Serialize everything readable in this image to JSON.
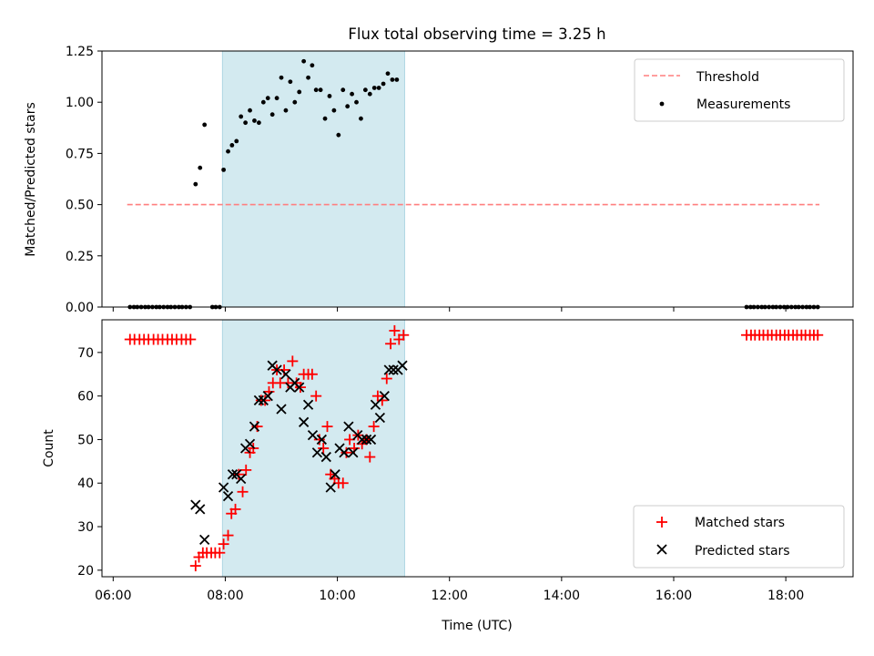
{
  "chart_data": {
    "title": "Flux total observing time = 3.25 h",
    "shaded_interval_hours": [
      7.95,
      11.2
    ],
    "shade_color": "#d3eaf0",
    "shade_edge_color": "#aed6e2",
    "x_axis": {
      "label": "Time (UTC)",
      "range_hours": [
        5.8,
        19.2
      ],
      "ticks": [
        {
          "hour": 6,
          "label": "06:00"
        },
        {
          "hour": 8,
          "label": "08:00"
        },
        {
          "hour": 10,
          "label": "10:00"
        },
        {
          "hour": 12,
          "label": "12:00"
        },
        {
          "hour": 14,
          "label": "14:00"
        },
        {
          "hour": 16,
          "label": "16:00"
        },
        {
          "hour": 18,
          "label": "18:00"
        }
      ]
    },
    "panels": [
      {
        "type": "line+scatter",
        "ylabel": "Matched/Predicted stars",
        "ylim": [
          0,
          1.25
        ],
        "yticks": [
          {
            "value": 0,
            "label": "0.00"
          },
          {
            "value": 0.25,
            "label": "0.25"
          },
          {
            "value": 0.5,
            "label": "0.50"
          },
          {
            "value": 0.75,
            "label": "0.75"
          },
          {
            "value": 1.0,
            "label": "1.00"
          },
          {
            "value": 1.25,
            "label": "1.25"
          }
        ],
        "legend": {
          "placement": "upper right",
          "entries": [
            "Threshold",
            "Measurements"
          ]
        },
        "threshold": {
          "name": "Threshold",
          "value": 0.5,
          "x_range_hours": [
            6.25,
            18.6
          ],
          "color": "#ff7f7f"
        },
        "measurements": {
          "name": "Measurements",
          "color": "#000000",
          "points": [
            [
              6.3,
              0
            ],
            [
              6.37,
              0
            ],
            [
              6.43,
              0
            ],
            [
              6.5,
              0
            ],
            [
              6.57,
              0
            ],
            [
              6.63,
              0
            ],
            [
              6.7,
              0
            ],
            [
              6.77,
              0
            ],
            [
              6.83,
              0
            ],
            [
              6.9,
              0
            ],
            [
              6.97,
              0
            ],
            [
              7.03,
              0
            ],
            [
              7.1,
              0
            ],
            [
              7.17,
              0
            ],
            [
              7.23,
              0
            ],
            [
              7.3,
              0
            ],
            [
              7.37,
              0
            ],
            [
              7.47,
              0.6
            ],
            [
              7.55,
              0.68
            ],
            [
              7.63,
              0.89
            ],
            [
              7.77,
              0
            ],
            [
              7.83,
              0
            ],
            [
              7.9,
              0
            ],
            [
              7.97,
              0.67
            ],
            [
              8.05,
              0.76
            ],
            [
              8.12,
              0.79
            ],
            [
              8.2,
              0.81
            ],
            [
              8.28,
              0.93
            ],
            [
              8.36,
              0.9
            ],
            [
              8.44,
              0.96
            ],
            [
              8.52,
              0.91
            ],
            [
              8.6,
              0.9
            ],
            [
              8.68,
              1.0
            ],
            [
              8.76,
              1.02
            ],
            [
              8.84,
              0.94
            ],
            [
              8.92,
              1.02
            ],
            [
              9.0,
              1.12
            ],
            [
              9.08,
              0.96
            ],
            [
              9.16,
              1.1
            ],
            [
              9.24,
              1.0
            ],
            [
              9.32,
              1.05
            ],
            [
              9.4,
              1.2
            ],
            [
              9.48,
              1.12
            ],
            [
              9.55,
              1.18
            ],
            [
              9.62,
              1.06
            ],
            [
              9.7,
              1.06
            ],
            [
              9.78,
              0.92
            ],
            [
              9.86,
              1.03
            ],
            [
              9.94,
              0.96
            ],
            [
              10.02,
              0.84
            ],
            [
              10.1,
              1.06
            ],
            [
              10.18,
              0.98
            ],
            [
              10.26,
              1.04
            ],
            [
              10.34,
              1.0
            ],
            [
              10.42,
              0.92
            ],
            [
              10.5,
              1.06
            ],
            [
              10.58,
              1.04
            ],
            [
              10.66,
              1.07
            ],
            [
              10.74,
              1.07
            ],
            [
              10.82,
              1.09
            ],
            [
              10.9,
              1.14
            ],
            [
              10.98,
              1.11
            ],
            [
              11.06,
              1.11
            ],
            [
              17.3,
              0
            ],
            [
              17.37,
              0
            ],
            [
              17.43,
              0
            ],
            [
              17.5,
              0
            ],
            [
              17.57,
              0
            ],
            [
              17.63,
              0
            ],
            [
              17.7,
              0
            ],
            [
              17.77,
              0
            ],
            [
              17.83,
              0
            ],
            [
              17.9,
              0
            ],
            [
              17.97,
              0
            ],
            [
              18.03,
              0
            ],
            [
              18.1,
              0
            ],
            [
              18.17,
              0
            ],
            [
              18.23,
              0
            ],
            [
              18.3,
              0
            ],
            [
              18.37,
              0
            ],
            [
              18.43,
              0
            ],
            [
              18.5,
              0
            ],
            [
              18.57,
              0
            ]
          ]
        }
      },
      {
        "type": "scatter",
        "ylabel": "Count",
        "ylim": [
          18.5,
          77.5
        ],
        "yticks": [
          {
            "value": 20,
            "label": "20"
          },
          {
            "value": 30,
            "label": "30"
          },
          {
            "value": 40,
            "label": "40"
          },
          {
            "value": 50,
            "label": "50"
          },
          {
            "value": 60,
            "label": "60"
          },
          {
            "value": 70,
            "label": "70"
          }
        ],
        "legend": {
          "placement": "lower right",
          "entries": [
            "Matched stars",
            "Predicted stars"
          ]
        },
        "series": [
          {
            "name": "Matched stars",
            "marker": "+",
            "color": "#ff0000",
            "points": [
              [
                6.3,
                73
              ],
              [
                6.38,
                73
              ],
              [
                6.47,
                73
              ],
              [
                6.55,
                73
              ],
              [
                6.63,
                73
              ],
              [
                6.72,
                73
              ],
              [
                6.8,
                73
              ],
              [
                6.88,
                73
              ],
              [
                6.97,
                73
              ],
              [
                7.05,
                73
              ],
              [
                7.13,
                73
              ],
              [
                7.22,
                73
              ],
              [
                7.3,
                73
              ],
              [
                7.38,
                73
              ],
              [
                7.47,
                21
              ],
              [
                7.53,
                23
              ],
              [
                7.6,
                24
              ],
              [
                7.67,
                24
              ],
              [
                7.75,
                24
              ],
              [
                7.82,
                24
              ],
              [
                7.9,
                24
              ],
              [
                7.97,
                26
              ],
              [
                8.05,
                28
              ],
              [
                8.11,
                33
              ],
              [
                8.18,
                34
              ],
              [
                8.24,
                42
              ],
              [
                8.31,
                38
              ],
              [
                8.37,
                43
              ],
              [
                8.44,
                47
              ],
              [
                8.5,
                48
              ],
              [
                8.57,
                53
              ],
              [
                8.64,
                59
              ],
              [
                8.71,
                59
              ],
              [
                8.78,
                61
              ],
              [
                8.85,
                63
              ],
              [
                8.92,
                66
              ],
              [
                8.98,
                63
              ],
              [
                9.05,
                66
              ],
              [
                9.12,
                63
              ],
              [
                9.2,
                68
              ],
              [
                9.27,
                63
              ],
              [
                9.34,
                62
              ],
              [
                9.4,
                65
              ],
              [
                9.48,
                65
              ],
              [
                9.55,
                65
              ],
              [
                9.62,
                60
              ],
              [
                9.68,
                50
              ],
              [
                9.75,
                48
              ],
              [
                9.82,
                53
              ],
              [
                9.88,
                42
              ],
              [
                9.95,
                41
              ],
              [
                10.02,
                40
              ],
              [
                10.1,
                40
              ],
              [
                10.16,
                47
              ],
              [
                10.22,
                50
              ],
              [
                10.3,
                48
              ],
              [
                10.37,
                51
              ],
              [
                10.44,
                49
              ],
              [
                10.52,
                50
              ],
              [
                10.58,
                46
              ],
              [
                10.65,
                53
              ],
              [
                10.72,
                60
              ],
              [
                10.8,
                59
              ],
              [
                10.88,
                64
              ],
              [
                10.95,
                72
              ],
              [
                11.02,
                75
              ],
              [
                11.1,
                73
              ],
              [
                11.18,
                74
              ],
              [
                17.3,
                74
              ],
              [
                17.38,
                74
              ],
              [
                17.45,
                74
              ],
              [
                17.53,
                74
              ],
              [
                17.6,
                74
              ],
              [
                17.68,
                74
              ],
              [
                17.75,
                74
              ],
              [
                17.83,
                74
              ],
              [
                17.9,
                74
              ],
              [
                17.98,
                74
              ],
              [
                18.05,
                74
              ],
              [
                18.13,
                74
              ],
              [
                18.2,
                74
              ],
              [
                18.28,
                74
              ],
              [
                18.35,
                74
              ],
              [
                18.43,
                74
              ],
              [
                18.5,
                74
              ],
              [
                18.57,
                74
              ]
            ]
          },
          {
            "name": "Predicted stars",
            "marker": "x",
            "color": "#000000",
            "points": [
              [
                7.47,
                35
              ],
              [
                7.55,
                34
              ],
              [
                7.63,
                27
              ],
              [
                7.97,
                39
              ],
              [
                8.05,
                37
              ],
              [
                8.13,
                42
              ],
              [
                8.2,
                42
              ],
              [
                8.28,
                41
              ],
              [
                8.36,
                48
              ],
              [
                8.44,
                49
              ],
              [
                8.52,
                53
              ],
              [
                8.6,
                59
              ],
              [
                8.68,
                59
              ],
              [
                8.76,
                60
              ],
              [
                8.84,
                67
              ],
              [
                8.92,
                66
              ],
              [
                9.0,
                57
              ],
              [
                9.08,
                65
              ],
              [
                9.16,
                62
              ],
              [
                9.24,
                63
              ],
              [
                9.32,
                62
              ],
              [
                9.4,
                54
              ],
              [
                9.48,
                58
              ],
              [
                9.56,
                51
              ],
              [
                9.64,
                47
              ],
              [
                9.72,
                50
              ],
              [
                9.8,
                46
              ],
              [
                9.88,
                39
              ],
              [
                9.96,
                42
              ],
              [
                10.04,
                48
              ],
              [
                10.12,
                47
              ],
              [
                10.2,
                53
              ],
              [
                10.28,
                47
              ],
              [
                10.36,
                51
              ],
              [
                10.44,
                50
              ],
              [
                10.52,
                50
              ],
              [
                10.6,
                50
              ],
              [
                10.68,
                58
              ],
              [
                10.76,
                55
              ],
              [
                10.84,
                60
              ],
              [
                10.92,
                66
              ],
              [
                11.0,
                66
              ],
              [
                11.08,
                66
              ],
              [
                11.16,
                67
              ]
            ]
          }
        ]
      }
    ]
  }
}
